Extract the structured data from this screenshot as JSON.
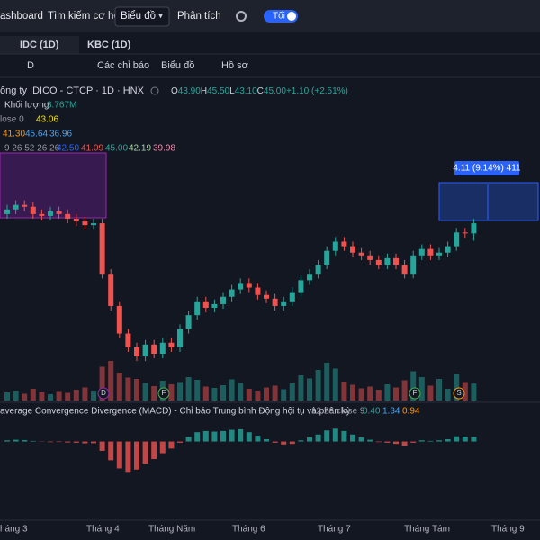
{
  "nav": {
    "items": [
      "ashboard",
      "Tìm kiếm cơ hội",
      "Biểu đồ",
      "Phân tích"
    ],
    "toggle": "Tối"
  },
  "tabs": [
    "IDC (1D)",
    "KBC (1D)"
  ],
  "toolbar": [
    "D",
    "Các chỉ báo",
    "Biểu đồ",
    "Hồ sơ"
  ],
  "legend": {
    "title": "ông ty IDICO - CTCP · 1D · HNX",
    "ohlc": [
      {
        "label": "O",
        "value": "43.90"
      },
      {
        "label": "H",
        "value": "45.50"
      },
      {
        "label": "L",
        "value": "43.10"
      },
      {
        "label": "C",
        "value": "45.00"
      }
    ],
    "change": "+1.10 (+2.51%)",
    "volume_label": "Khối lượng",
    "volume_value": "3.767M",
    "ma_label": "lose 0",
    "ma_value": "43.06",
    "bb_values": [
      "41.30",
      "45.64",
      "36.96"
    ],
    "ichimoku_label": "9 26 52 26 26",
    "ichimoku_values": [
      "42.50",
      "41.09",
      "45.00",
      "42.19",
      "39.98"
    ],
    "macd_label": "average Convergence Divergence (MACD) - Chỉ báo Trung bình Động hội tụ và phân kỳ",
    "macd_params": "12 26 close 9",
    "macd_values": [
      "0.40",
      "1.34",
      "0.94"
    ]
  },
  "measure": "4.11 (9.14%) 411",
  "events": [
    "D",
    "F",
    "F",
    "S"
  ],
  "chart_data": {
    "type": "candlestick",
    "open": [
      46,
      46.5,
      47,
      46.8,
      46,
      45.8,
      46.3,
      46,
      45.5,
      45.2,
      44.8,
      45,
      39.5,
      36,
      33,
      31.5,
      30.5,
      31.8,
      30.8,
      32,
      31.5,
      33.5,
      35,
      36.5,
      35.8,
      36.2,
      37,
      37.8,
      38.5,
      38,
      37.2,
      36.8,
      36,
      36.5,
      37.5,
      38.8,
      39.5,
      40.5,
      42,
      43,
      42.5,
      41.8,
      41.5,
      41,
      40.5,
      41.2,
      40.5,
      39.5,
      41.5,
      42.2,
      41.5,
      41.8,
      42.5,
      44,
      43.9
    ],
    "high": [
      47,
      47.5,
      47.5,
      47.3,
      46.5,
      46.8,
      46.8,
      46.5,
      46,
      45.7,
      45.5,
      45.5,
      40,
      36.5,
      33.5,
      32,
      32.3,
      32.3,
      32.5,
      32.5,
      34,
      35.5,
      37,
      37,
      36.7,
      37.5,
      38.3,
      39,
      39,
      38.5,
      37.7,
      37.3,
      37,
      38,
      39.3,
      40,
      41,
      42.5,
      43.5,
      43.5,
      43,
      42.3,
      42,
      41.5,
      41.7,
      41.7,
      41,
      42,
      42.7,
      42.7,
      42.3,
      43,
      44.5,
      44.5,
      45.5
    ],
    "low": [
      45.5,
      46,
      46.3,
      45.5,
      45.3,
      45.3,
      45.5,
      45,
      44.7,
      44.3,
      44.3,
      39,
      35.5,
      32.5,
      31,
      30,
      30,
      30.3,
      30.3,
      31,
      31,
      33,
      34.5,
      35.3,
      35.3,
      35.7,
      36.5,
      37.3,
      37.5,
      36.7,
      36.3,
      35.5,
      35.5,
      36,
      37,
      38.3,
      39,
      40,
      41.5,
      42,
      41.3,
      41,
      40.5,
      40,
      40,
      40,
      39,
      39,
      41,
      41,
      41,
      41.3,
      42,
      43.4,
      43.1
    ],
    "close": [
      46.5,
      47,
      46.8,
      46,
      45.8,
      46.3,
      46,
      45.5,
      45.2,
      44.8,
      45,
      39.5,
      36,
      33,
      31.5,
      30.5,
      31.8,
      30.8,
      32,
      31.5,
      33.5,
      35,
      36.5,
      35.8,
      36.2,
      37,
      37.8,
      38.5,
      38,
      37.2,
      36.8,
      36,
      36.5,
      37.5,
      38.8,
      39.5,
      40.5,
      42,
      43,
      42.5,
      41.8,
      41.5,
      41,
      40.5,
      41.2,
      40.5,
      39.5,
      41.5,
      42.2,
      41.5,
      41.8,
      42.5,
      44,
      43.9,
      45
    ],
    "volume": [
      1.8,
      2.2,
      1.5,
      2.6,
      1.9,
      1.4,
      2.1,
      1.7,
      2.4,
      2.9,
      2.2,
      7.5,
      8.8,
      6.2,
      5.1,
      4.8,
      3.9,
      3.2,
      4.4,
      3.6,
      4.1,
      5.2,
      4.6,
      3.1,
      2.8,
      3.4,
      4.7,
      3.9,
      2.6,
      2.2,
      2.9,
      3.3,
      2.5,
      3.8,
      5.6,
      4.9,
      6.8,
      8.4,
      7.1,
      4.2,
      3.5,
      2.7,
      3.1,
      2.4,
      3.6,
      2.9,
      4.5,
      6.5,
      5.2,
      3.3,
      4.8,
      2.6,
      5.9,
      4.1,
      3.767
    ],
    "macd_hist": [
      0.1,
      0.15,
      0.12,
      0.05,
      -0.02,
      -0.05,
      -0.04,
      -0.08,
      -0.1,
      -0.15,
      -0.14,
      -0.8,
      -1.6,
      -2.3,
      -2.6,
      -2.4,
      -1.9,
      -1.5,
      -1.0,
      -0.6,
      -0.1,
      0.4,
      0.8,
      0.9,
      0.85,
      0.9,
      1.0,
      1.05,
      0.8,
      0.5,
      0.2,
      -0.1,
      -0.25,
      -0.2,
      0.1,
      0.35,
      0.6,
      0.95,
      1.1,
      0.9,
      0.6,
      0.35,
      0.15,
      -0.05,
      -0.1,
      -0.2,
      -0.35,
      -0.1,
      0.1,
      0.05,
      0.1,
      0.2,
      0.45,
      0.42,
      0.4
    ],
    "ylim": [
      26,
      60
    ],
    "vlim": [
      0,
      12
    ],
    "mlim": [
      -6.5,
      2.2
    ],
    "x_labels": [
      "háng 3",
      "Tháng 4",
      "Tháng Năm",
      "Tháng 6",
      "Tháng 7",
      "Tháng Tám",
      "Tháng 9"
    ],
    "up_color": "#26a69a",
    "down_color": "#ef5350"
  }
}
